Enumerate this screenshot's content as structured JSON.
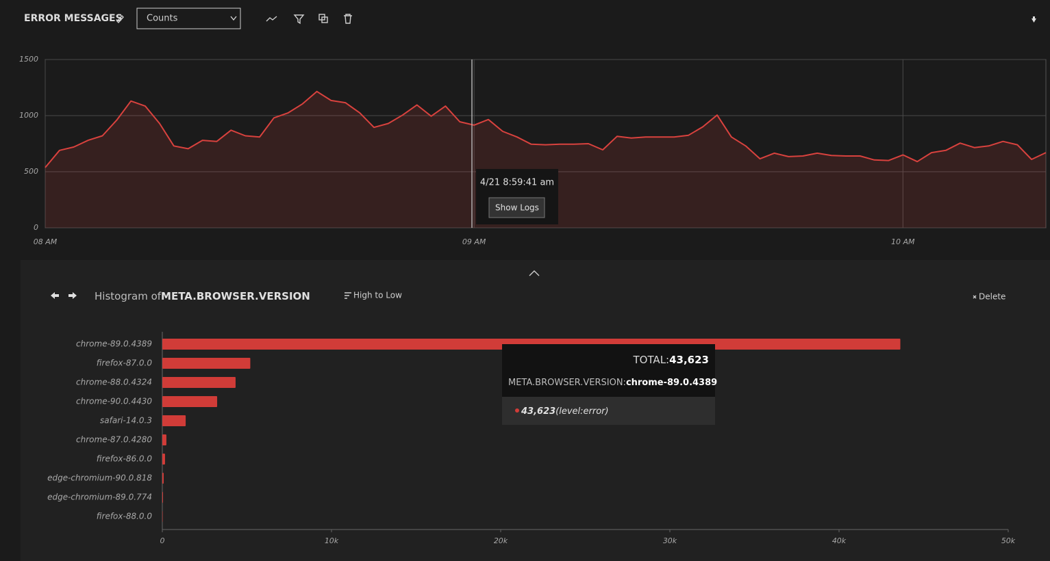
{
  "header": {
    "title": "ERROR MESSAGES",
    "select": "Counts"
  },
  "chart_data": [
    {
      "type": "area",
      "x": [
        0,
        2,
        4,
        6,
        8,
        10,
        12,
        14,
        16,
        18,
        20,
        22,
        24,
        26,
        28,
        30,
        32,
        34,
        36,
        38,
        40,
        42,
        44,
        46,
        48,
        50,
        52,
        54,
        56,
        58,
        60,
        62,
        64,
        66,
        68,
        70,
        72,
        74,
        76,
        78,
        80,
        82,
        84,
        86,
        88,
        90,
        92,
        94,
        96,
        98,
        100,
        102,
        104,
        106,
        108,
        110,
        112,
        114,
        116,
        118,
        120,
        122,
        124,
        126,
        128,
        130,
        132,
        134,
        136,
        138,
        140
      ],
      "series": [
        {
          "color": "#d9423e",
          "values": [
            537,
            690,
            720,
            780,
            820,
            960,
            1130,
            1085,
            930,
            730,
            705,
            780,
            770,
            870,
            820,
            810,
            980,
            1025,
            1105,
            1215,
            1135,
            1115,
            1025,
            895,
            930,
            1005,
            1095,
            995,
            1085,
            945,
            915,
            965,
            860,
            810,
            745,
            740,
            745,
            745,
            750,
            695,
            815,
            800,
            810,
            810,
            810,
            825,
            900,
            1005,
            810,
            730,
            615,
            665,
            635,
            640,
            665,
            645,
            640,
            640,
            605,
            600,
            650,
            590,
            670,
            690,
            755,
            715,
            730,
            770,
            740,
            610,
            670
          ]
        }
      ],
      "xlim": [
        0,
        140
      ],
      "xticks": [
        {
          "value": 0,
          "label": "08 AM"
        },
        {
          "value": 60,
          "label": "09 AM"
        },
        {
          "value": 120,
          "label": "10 AM"
        }
      ],
      "ylim": [
        0,
        1500
      ],
      "yticks": [
        0,
        500,
        1000,
        1500
      ],
      "grid": true
    },
    {
      "type": "bar",
      "orientation": "horizontal",
      "title_prefix": "Histogram of",
      "title": "META.BROWSER.VERSION",
      "categories": [
        "chrome-89.0.4389",
        "firefox-87.0.0",
        "chrome-88.0.4324",
        "chrome-90.0.4430",
        "safari-14.0.3",
        "chrome-87.0.4280",
        "firefox-86.0.0",
        "edge-chromium-90.0.818",
        "edge-chromium-89.0.774",
        "firefox-88.0.0"
      ],
      "values": [
        43623,
        5200,
        4330,
        3240,
        1380,
        240,
        160,
        80,
        40,
        20
      ],
      "color": "#d13c38",
      "xlim": [
        0,
        50000
      ],
      "xticks": [
        0,
        {
          "value": 10000,
          "label": "10k"
        },
        {
          "value": 20000,
          "label": "20k"
        },
        {
          "value": 30000,
          "label": "30k"
        },
        {
          "value": 40000,
          "label": "40k"
        },
        {
          "value": 50000,
          "label": "50k"
        }
      ]
    }
  ],
  "line_tooltip": {
    "time": "4/21 8:59:41 am",
    "button": "Show Logs"
  },
  "histogram_controls": {
    "sort": "High to Low",
    "delete": "Delete"
  },
  "bar_tooltip": {
    "total_label": "TOTAL:",
    "total": "43,623",
    "field": "META.BROWSER.VERSION:",
    "field_value": "chrome-89.0.4389",
    "count": "43,623",
    "level": "(level:error)"
  }
}
